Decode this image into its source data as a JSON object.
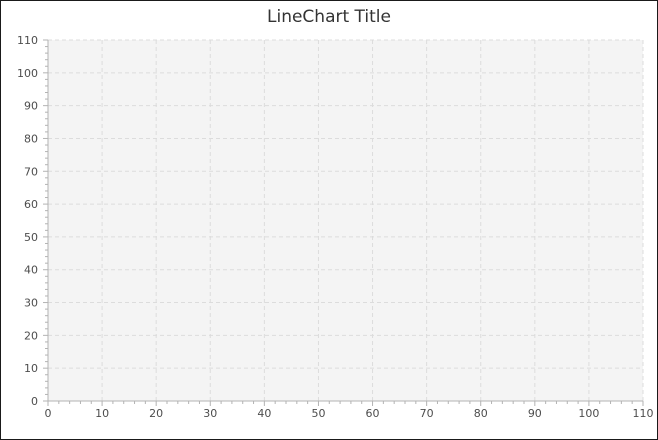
{
  "chart_data": {
    "type": "line",
    "title": "LineChart Title",
    "xlabel": "",
    "ylabel": "",
    "xlim": [
      0,
      110
    ],
    "ylim": [
      0,
      110
    ],
    "x_ticks": [
      0,
      10,
      20,
      30,
      40,
      50,
      60,
      70,
      80,
      90,
      100,
      110
    ],
    "y_ticks": [
      0,
      10,
      20,
      30,
      40,
      50,
      60,
      70,
      80,
      90,
      100,
      110
    ],
    "minor_ticks_per_major": 5,
    "grid": true,
    "series": []
  }
}
